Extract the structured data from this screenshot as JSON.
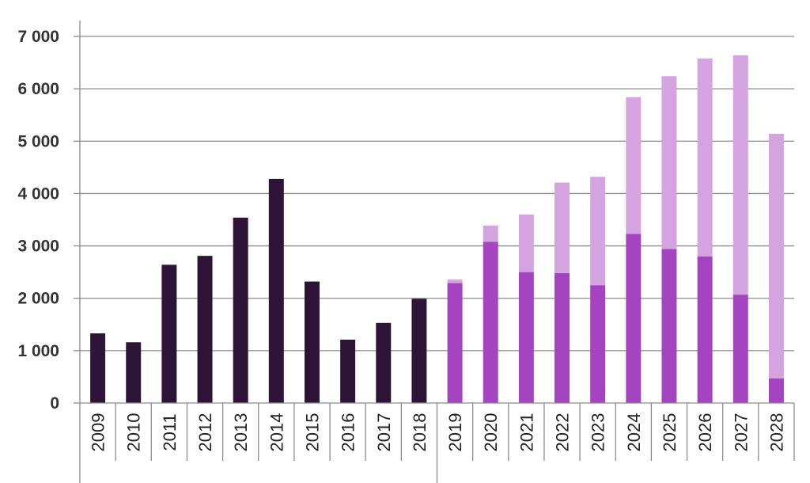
{
  "chart_data": {
    "type": "bar",
    "stacked": true,
    "categories": [
      "2009",
      "2010",
      "2011",
      "2012",
      "2013",
      "2014",
      "2015",
      "2016",
      "2017",
      "2018",
      "2019",
      "2020",
      "2021",
      "2022",
      "2023",
      "2024",
      "2025",
      "2026",
      "2027",
      "2028"
    ],
    "series": [
      {
        "color": "#2e1538",
        "values": [
          1330,
          1160,
          2640,
          2810,
          3540,
          4280,
          2320,
          1210,
          1530,
          1990,
          null,
          null,
          null,
          null,
          null,
          null,
          null,
          null,
          null,
          null
        ]
      },
      {
        "color": "#a444c0",
        "values": [
          null,
          null,
          null,
          null,
          null,
          null,
          null,
          null,
          null,
          null,
          2290,
          3080,
          2500,
          2480,
          2250,
          3230,
          2940,
          2800,
          2070,
          470
        ]
      },
      {
        "color": "#d4a3e0",
        "values": [
          null,
          null,
          null,
          null,
          null,
          null,
          null,
          null,
          null,
          null,
          70,
          310,
          1100,
          1730,
          2070,
          2610,
          3300,
          3780,
          4570,
          4670
        ]
      }
    ],
    "ylim": [
      0,
      7000
    ],
    "yticks": [
      0,
      1000,
      2000,
      3000,
      4000,
      5000,
      6000,
      7000
    ],
    "ytick_labels": [
      "0",
      "1 000",
      "2 000",
      "3 000",
      "4 000",
      "5 000",
      "6 000",
      "7 000"
    ],
    "grid": true,
    "title": "",
    "xlabel": "",
    "ylabel": ""
  }
}
